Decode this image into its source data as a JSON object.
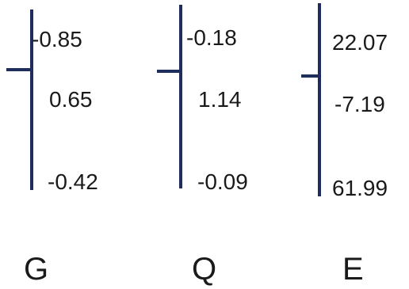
{
  "colors": {
    "line": "#1f2d5c",
    "text": "#1a1a1a",
    "background": "#ffffff"
  },
  "glyphs": [
    {
      "label": "G",
      "values": [
        "-0.85",
        "0.65",
        "-0.42"
      ]
    },
    {
      "label": "Q",
      "values": [
        "-0.18",
        "1.14",
        "-0.09"
      ]
    },
    {
      "label": "E",
      "values": [
        "22.07",
        "-7.19",
        "61.99"
      ]
    }
  ]
}
